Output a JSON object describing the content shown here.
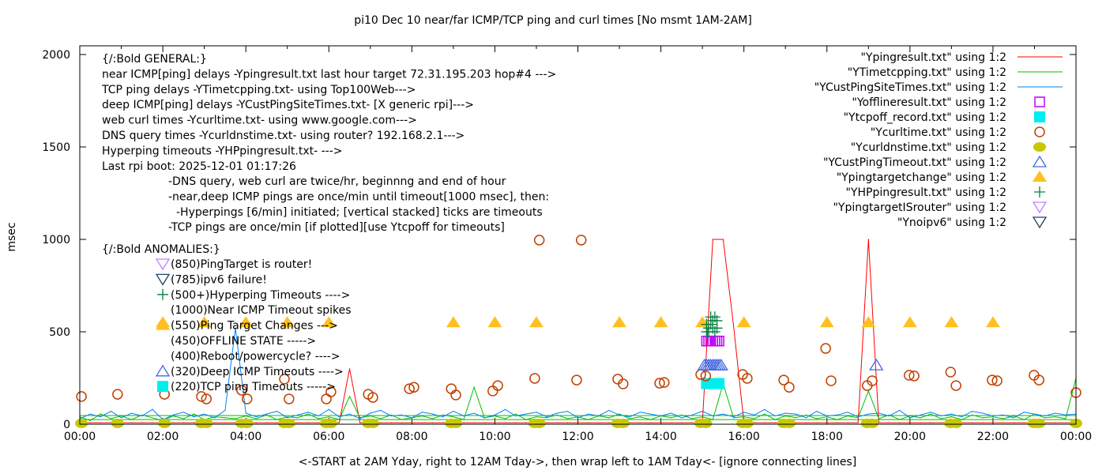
{
  "chart_data": {
    "type": "line",
    "title": "pi10 Dec 10  near/far ICMP/TCP ping and curl times [No msmt 1AM-2AM]",
    "xlabel": "<-START at 2AM Yday, right to 12AM Tday->, then wrap left to 1AM Tday<- [ignore connecting lines]",
    "ylabel": "msec",
    "xlim": [
      0,
      24
    ],
    "ylim": [
      0,
      2047
    ],
    "xticks": [
      0,
      2,
      4,
      6,
      8,
      10,
      12,
      14,
      16,
      18,
      20,
      22,
      24
    ],
    "xtick_labels": [
      "00:00",
      "02:00",
      "04:00",
      "06:00",
      "08:00",
      "10:00",
      "12:00",
      "14:00",
      "16:00",
      "18:00",
      "20:00",
      "22:00",
      "00:00"
    ],
    "yticks": [
      0,
      500,
      1000,
      1500,
      2000
    ],
    "ytick_labels": [
      "0",
      "500",
      "1000",
      "1500",
      "2000"
    ],
    "legend_position": "top-right",
    "x_step_hours": 0.25,
    "series": [
      {
        "name": "\"Ypingresult.txt\" using 1:2",
        "style": "line",
        "color": "#ff0000",
        "values": [
          8,
          8,
          8,
          8,
          8,
          8,
          8,
          8,
          8,
          8,
          8,
          8,
          8,
          8,
          8,
          8,
          8,
          8,
          8,
          8,
          8,
          8,
          8,
          8,
          8,
          8,
          300,
          8,
          8,
          8,
          8,
          8,
          8,
          8,
          8,
          8,
          8,
          8,
          8,
          8,
          8,
          8,
          8,
          8,
          8,
          8,
          8,
          8,
          8,
          8,
          8,
          8,
          8,
          8,
          8,
          8,
          8,
          8,
          8,
          8,
          8,
          1000,
          1000,
          534,
          8,
          8,
          8,
          8,
          8,
          8,
          8,
          8,
          8,
          8,
          8,
          8,
          1000,
          8,
          8,
          8,
          8,
          8,
          8,
          8,
          8,
          8,
          8,
          8,
          8,
          8,
          8,
          8,
          8,
          8,
          8,
          8,
          8
        ]
      },
      {
        "name": "\"YTimetcpping.txt\" using 1:2",
        "style": "line",
        "color": "#00c000",
        "values": [
          40,
          20,
          55,
          30,
          45,
          25,
          50,
          35,
          20,
          45,
          30,
          55,
          25,
          40,
          35,
          30,
          45,
          30,
          50,
          25,
          40,
          35,
          55,
          30,
          40,
          25,
          150,
          35,
          45,
          30,
          50,
          25,
          35,
          45,
          30,
          50,
          40,
          25,
          200,
          35,
          45,
          30,
          55,
          25,
          40,
          35,
          50,
          30,
          40,
          25,
          45,
          35,
          55,
          30,
          40,
          25,
          45,
          35,
          50,
          30,
          40,
          25,
          220,
          35,
          40,
          30,
          55,
          25,
          45,
          35,
          50,
          30,
          40,
          25,
          45,
          35,
          180,
          30,
          50,
          25,
          45,
          35,
          55,
          30,
          40,
          25,
          50,
          35,
          40,
          30,
          45,
          25,
          55,
          35,
          40,
          30,
          250
        ]
      },
      {
        "name": "\"YCustPingSiteTimes.txt\" using 1:2",
        "style": "line",
        "color": "#0080ff",
        "values": [
          30,
          55,
          40,
          70,
          35,
          60,
          45,
          80,
          25,
          50,
          65,
          40,
          55,
          35,
          75,
          520,
          60,
          40,
          55,
          70,
          35,
          50,
          65,
          45,
          80,
          40,
          55,
          30,
          60,
          75,
          45,
          50,
          35,
          65,
          55,
          40,
          70,
          45,
          60,
          35,
          50,
          80,
          45,
          55,
          65,
          40,
          60,
          70,
          35,
          55,
          45,
          75,
          50,
          40,
          65,
          55,
          45,
          60,
          35,
          50,
          70,
          45,
          55,
          40,
          65,
          50,
          80,
          45,
          60,
          55,
          35,
          70,
          45,
          50,
          65,
          40,
          55,
          60,
          45,
          75,
          35,
          50,
          65,
          45,
          55,
          40,
          70,
          60,
          45,
          50,
          35,
          65,
          55,
          45,
          60,
          50,
          55
        ]
      },
      {
        "name": "\"Yofflineresult.txt\" using 1:2",
        "style": "open-square",
        "color": "#c000ff",
        "points": [
          [
            15.1,
            450
          ],
          [
            15.15,
            450
          ],
          [
            15.2,
            450
          ],
          [
            15.25,
            450
          ],
          [
            15.3,
            450
          ],
          [
            15.35,
            450
          ],
          [
            15.4,
            450
          ]
        ]
      },
      {
        "name": "\"Ytcpoff_record.txt\" using 1:2",
        "style": "filled-square",
        "color": "#00eeee",
        "points": [
          [
            15.1,
            220
          ],
          [
            15.15,
            220
          ],
          [
            15.2,
            220
          ],
          [
            15.25,
            220
          ],
          [
            15.3,
            220
          ],
          [
            15.35,
            220
          ],
          [
            15.4,
            220
          ]
        ]
      },
      {
        "name": "\"Ycurltime.txt\" using 1:2",
        "style": "open-circle",
        "color": "#c04000",
        "points": [
          [
            0.04,
            150
          ],
          [
            0.91,
            162
          ],
          [
            2.04,
            162
          ],
          [
            2.93,
            150
          ],
          [
            3.05,
            137
          ],
          [
            3.9,
            184
          ],
          [
            4.03,
            137
          ],
          [
            4.93,
            244
          ],
          [
            5.04,
            137
          ],
          [
            5.94,
            137
          ],
          [
            6.05,
            175
          ],
          [
            6.95,
            162
          ],
          [
            7.06,
            145
          ],
          [
            7.94,
            192
          ],
          [
            8.05,
            200
          ],
          [
            8.95,
            192
          ],
          [
            9.06,
            158
          ],
          [
            9.95,
            180
          ],
          [
            10.07,
            209
          ],
          [
            10.96,
            248
          ],
          [
            11.07,
            996
          ],
          [
            11.97,
            239
          ],
          [
            12.08,
            996
          ],
          [
            12.96,
            244
          ],
          [
            13.09,
            218
          ],
          [
            13.97,
            222
          ],
          [
            14.08,
            226
          ],
          [
            14.96,
            269
          ],
          [
            15.08,
            261
          ],
          [
            15.97,
            269
          ],
          [
            16.08,
            248
          ],
          [
            16.96,
            239
          ],
          [
            17.09,
            200
          ],
          [
            17.97,
            410
          ],
          [
            18.1,
            235
          ],
          [
            18.97,
            209
          ],
          [
            19.09,
            235
          ],
          [
            19.98,
            265
          ],
          [
            20.1,
            261
          ],
          [
            20.98,
            282
          ],
          [
            21.11,
            209
          ],
          [
            21.98,
            239
          ],
          [
            22.1,
            235
          ],
          [
            22.99,
            265
          ],
          [
            23.11,
            239
          ],
          [
            24.0,
            171
          ]
        ]
      },
      {
        "name": "\"Ycurldnstime.txt\" using 1:2",
        "style": "filled-circle",
        "color": "#c8c800",
        "points": [
          [
            0.04,
            5
          ],
          [
            0.91,
            5
          ],
          [
            2.04,
            5
          ],
          [
            2.93,
            5
          ],
          [
            3.05,
            5
          ],
          [
            3.9,
            5
          ],
          [
            4.03,
            5
          ],
          [
            4.93,
            5
          ],
          [
            5.04,
            5
          ],
          [
            5.94,
            5
          ],
          [
            6.05,
            5
          ],
          [
            6.95,
            5
          ],
          [
            7.06,
            5
          ],
          [
            8.95,
            5
          ],
          [
            9.06,
            5
          ],
          [
            10.96,
            5
          ],
          [
            11.07,
            5
          ],
          [
            12.96,
            5
          ],
          [
            13.09,
            5
          ],
          [
            14.96,
            5
          ],
          [
            15.08,
            5
          ],
          [
            15.97,
            5
          ],
          [
            16.08,
            5
          ],
          [
            16.96,
            5
          ],
          [
            17.09,
            5
          ],
          [
            18.97,
            5
          ],
          [
            19.09,
            5
          ],
          [
            20.98,
            5
          ],
          [
            21.11,
            5
          ],
          [
            22.99,
            5
          ],
          [
            23.11,
            5
          ],
          [
            24.0,
            5
          ]
        ]
      },
      {
        "name": "\"YCustPingTimeout.txt\" using 1:2",
        "style": "open-triangle",
        "color": "#4169e1",
        "points": [
          [
            15.05,
            320
          ],
          [
            15.1,
            320
          ],
          [
            15.15,
            320
          ],
          [
            15.2,
            320
          ],
          [
            15.25,
            320
          ],
          [
            15.3,
            320
          ],
          [
            15.35,
            320
          ],
          [
            15.4,
            320
          ],
          [
            15.45,
            320
          ],
          [
            19.19,
            320
          ]
        ]
      },
      {
        "name": "\"Ypingtargetchange\" using 1:2",
        "style": "filled-triangle",
        "color": "#ffc020",
        "points": [
          [
            2,
            550
          ],
          [
            3,
            550
          ],
          [
            4,
            550
          ],
          [
            5,
            550
          ],
          [
            6,
            550
          ],
          [
            9,
            550
          ],
          [
            10,
            550
          ],
          [
            11,
            550
          ],
          [
            13,
            550
          ],
          [
            14,
            550
          ],
          [
            15,
            550
          ],
          [
            16,
            550
          ],
          [
            18,
            550
          ],
          [
            19,
            550
          ],
          [
            20,
            550
          ],
          [
            21,
            550
          ],
          [
            22,
            550
          ]
        ]
      },
      {
        "name": "\"YHPpingresult.txt\" using 1:2",
        "style": "plus",
        "color": "#008040",
        "points": [
          [
            15.1,
            500
          ],
          [
            15.15,
            520
          ],
          [
            15.2,
            540
          ],
          [
            15.25,
            560
          ],
          [
            15.3,
            580
          ],
          [
            15.1,
            540
          ],
          [
            15.15,
            500
          ],
          [
            15.2,
            580
          ],
          [
            15.25,
            520
          ],
          [
            15.3,
            500
          ],
          [
            15.35,
            560
          ],
          [
            15.35,
            520
          ]
        ]
      },
      {
        "name": "\"YpingtargetISrouter\" using 1:2",
        "style": "open-down-triangle",
        "color": "#c080ff",
        "points": []
      },
      {
        "name": "\"Ynoipv6\" using 1:2",
        "style": "open-down-triangle",
        "color": "#204060",
        "points": []
      }
    ],
    "annotations": {
      "general": [
        "{/:Bold GENERAL:}",
        "near ICMP[ping] delays -Ypingresult.txt last hour target 72.31.195.203 hop#4 --->",
        "TCP ping delays -YTimetcpping.txt- using Top100Web--->",
        "deep ICMP[ping] delays -YCustPingSiteTimes.txt- [X generic rpi]--->",
        "web curl times -Ycurltime.txt- using www.google.com--->",
        "DNS query times -Ycurldnstime.txt- using router? 192.168.2.1--->",
        "Hyperping timeouts -YHPpingresult.txt- --->",
        "Last rpi boot: 2025-12-01 01:17:26"
      ],
      "notes": [
        "-DNS query, web curl are twice/hr, beginnng and end of hour",
        "-near,deep ICMP pings are once/min until timeout[1000 msec], then:",
        " -Hyperpings [6/min] initiated; [vertical stacked] ticks are timeouts",
        "-TCP pings are once/min [if plotted][use Ytcpoff for timeouts]"
      ],
      "anomalies_title": "{/:Bold ANOMALIES:}",
      "anomalies": [
        {
          "text": "(850)PingTarget is router!",
          "marker": "open-down-triangle",
          "color": "#c080ff"
        },
        {
          "text": "(785)ipv6 failure!",
          "marker": "open-down-triangle",
          "color": "#204060"
        },
        {
          "text": "(500+)Hyperping Timeouts ---->",
          "marker": "plus",
          "color": "#008040"
        },
        {
          "text": "(1000)Near ICMP Timeout spikes",
          "marker": "none",
          "color": "#ff0000"
        },
        {
          "text": "(550)Ping Target Changes --->",
          "marker": "filled-triangle",
          "color": "#ffc020"
        },
        {
          "text": "(450)OFFLINE STATE ----->",
          "marker": "none",
          "color": "#c000ff"
        },
        {
          "text": "(400)Reboot/powercycle? ---->",
          "marker": "none",
          "color": "#000000"
        },
        {
          "text": "(320)Deep ICMP Timeouts ---->",
          "marker": "open-triangle",
          "color": "#4169e1"
        },
        {
          "text": "(220)TCP ping Timeouts ----->",
          "marker": "filled-square",
          "color": "#00eeee"
        }
      ]
    },
    "reference_lines": [
      {
        "y": 47,
        "color": "#00c000"
      },
      {
        "y": 25,
        "color": "#00c000"
      }
    ]
  }
}
